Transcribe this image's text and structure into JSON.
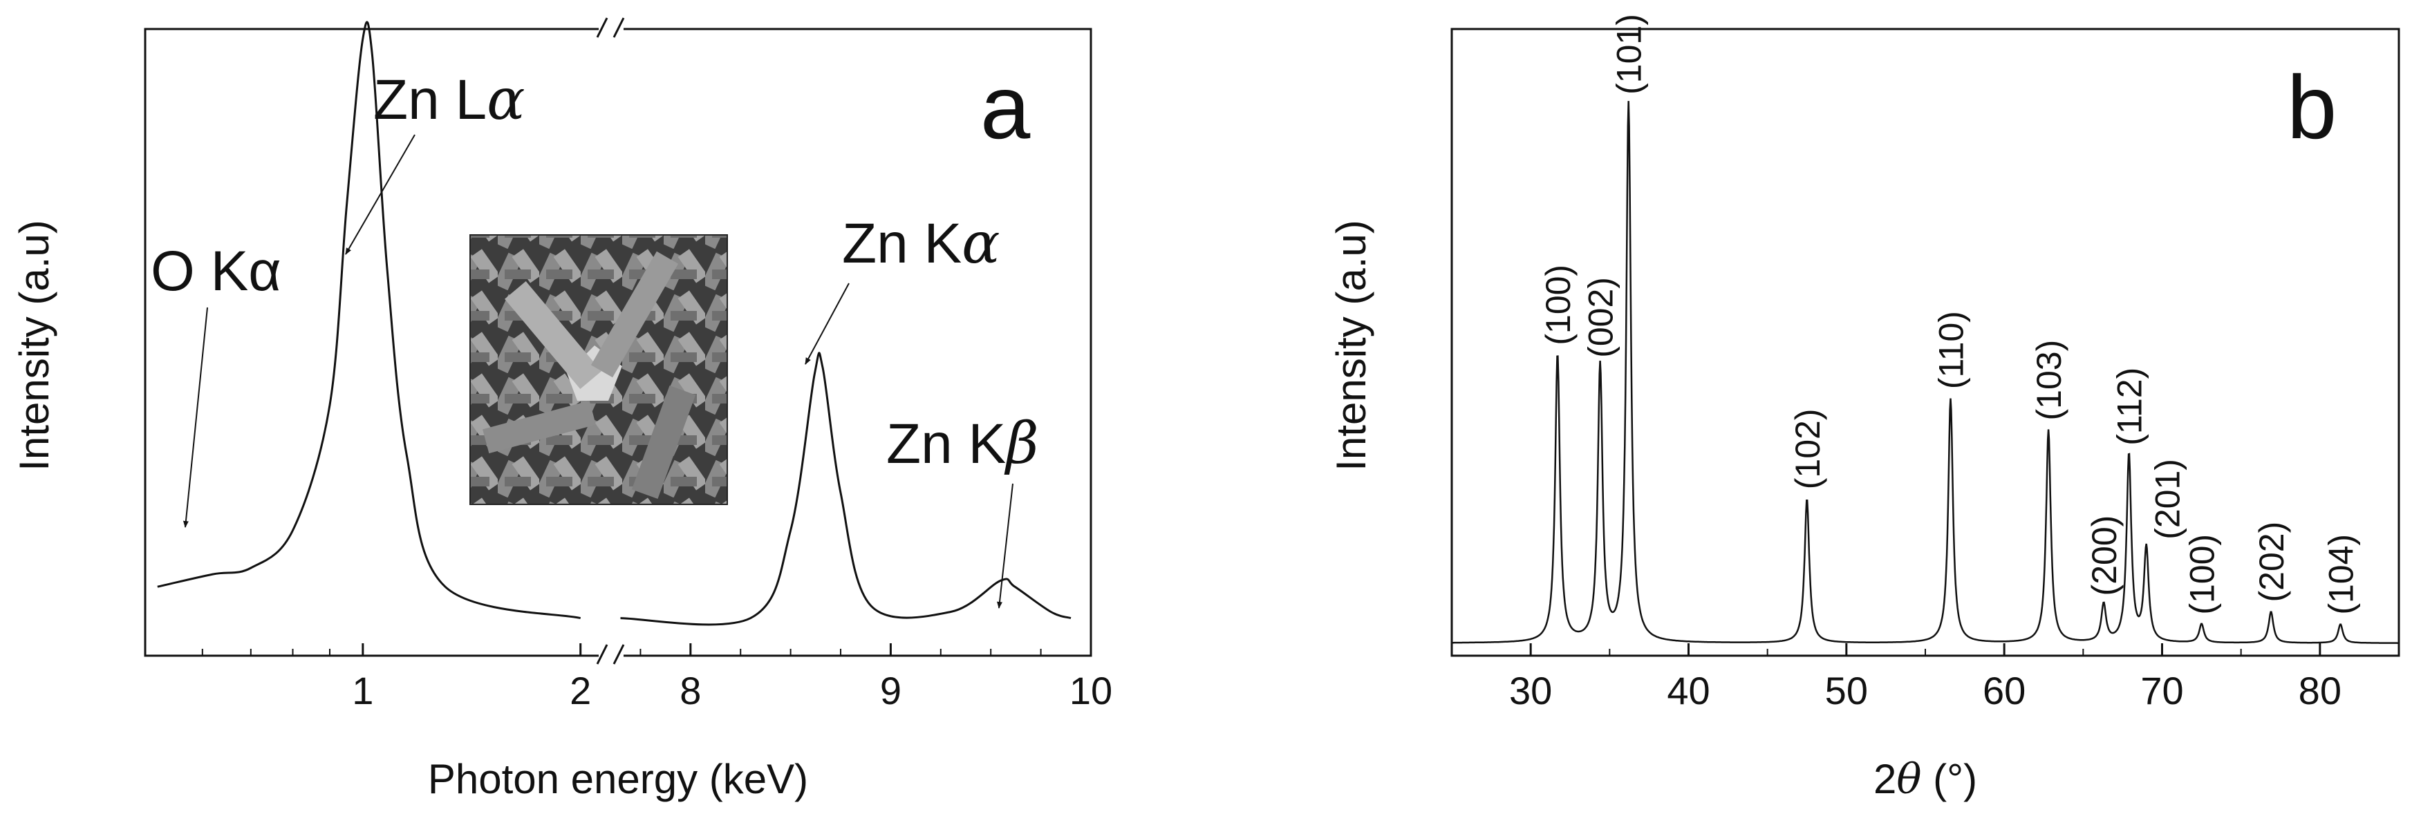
{
  "chart_data": [
    {
      "type": "line",
      "panel_label": "a",
      "xlabel": "Photon energy (keV)",
      "ylabel": "Intensity (a.u)",
      "x_segments": [
        {
          "range": [
            0.5,
            2.2
          ],
          "ticks": [
            "1",
            "2"
          ],
          "tick_values": [
            1,
            2
          ],
          "scale": "log"
        },
        {
          "range": [
            7.6,
            10.0
          ],
          "ticks": [
            "8",
            "9",
            "10"
          ],
          "tick_values": [
            8,
            9,
            10
          ],
          "scale": "linear"
        }
      ],
      "annotations": [
        {
          "label": "O Kα",
          "x": 0.525
        },
        {
          "label": "Zn Lα",
          "x": 1.012
        },
        {
          "label": "Zn Kα",
          "x": 8.64
        },
        {
          "label": "Zn Kβ",
          "x": 9.57
        }
      ],
      "series": [
        {
          "segment_1": [
            [
              0.52,
              0.11
            ],
            [
              0.62,
              0.13
            ],
            [
              0.7,
              0.14
            ],
            [
              0.8,
              0.2
            ],
            [
              0.9,
              0.4
            ],
            [
              0.95,
              0.72
            ],
            [
              1.0,
              0.985
            ],
            [
              1.03,
              0.96
            ],
            [
              1.08,
              0.62
            ],
            [
              1.15,
              0.32
            ],
            [
              1.3,
              0.11
            ],
            [
              2.0,
              0.06
            ]
          ],
          "segment_2": [
            [
              7.65,
              0.06
            ],
            [
              8.3,
              0.06
            ],
            [
              8.5,
              0.2
            ],
            [
              8.62,
              0.45
            ],
            [
              8.66,
              0.46
            ],
            [
              8.75,
              0.26
            ],
            [
              8.9,
              0.08
            ],
            [
              9.3,
              0.07
            ],
            [
              9.55,
              0.12
            ],
            [
              9.62,
              0.11
            ],
            [
              9.8,
              0.07
            ],
            [
              9.9,
              0.06
            ]
          ]
        }
      ],
      "inset": "SEM micrograph of ZnO rods"
    },
    {
      "type": "line",
      "panel_label": "b",
      "xlabel": "2θ (°)",
      "ylabel": "Intensity (a.u)",
      "xlim": [
        25,
        85
      ],
      "xticks": [
        30,
        40,
        50,
        60,
        70,
        80
      ],
      "baseline": 0.02,
      "peaks": [
        {
          "x": 31.7,
          "y": 0.48,
          "label": "(100)"
        },
        {
          "x": 34.4,
          "y": 0.46,
          "label": "(002)"
        },
        {
          "x": 36.2,
          "y": 0.88,
          "label": "(101)"
        },
        {
          "x": 47.5,
          "y": 0.25,
          "label": "(102)"
        },
        {
          "x": 56.6,
          "y": 0.41,
          "label": "(110)"
        },
        {
          "x": 62.8,
          "y": 0.36,
          "label": "(103)"
        },
        {
          "x": 66.3,
          "y": 0.08,
          "label": "(200)"
        },
        {
          "x": 67.9,
          "y": 0.32,
          "label": "(112)"
        },
        {
          "x": 69.0,
          "y": 0.17,
          "label": "(201)"
        },
        {
          "x": 72.5,
          "y": 0.05,
          "label": "(100)"
        },
        {
          "x": 76.9,
          "y": 0.07,
          "label": "(202)"
        },
        {
          "x": 81.3,
          "y": 0.05,
          "label": "(104)"
        }
      ]
    }
  ]
}
